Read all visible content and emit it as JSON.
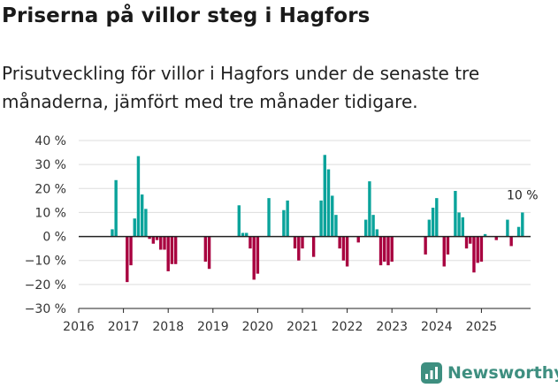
{
  "title": "Priserna på villor steg i Hagfors",
  "subtitle": "Prisutveckling för villor i Hagfors under de senaste tre månaderna, jämfört med tre månader tidigare.",
  "brand": {
    "name": "Newsworthy",
    "icon": "newsworthy-logo-icon",
    "color": "#3e8f80"
  },
  "chart_data": {
    "type": "bar",
    "ylim": [
      -30,
      40
    ],
    "yticks": [
      -30,
      -20,
      -10,
      0,
      10,
      20,
      30,
      40
    ],
    "ytick_labels": [
      "−30 %",
      "−20 %",
      "−10 %",
      "0 %",
      "10 %",
      "20 %",
      "30 %",
      "40 %"
    ],
    "xticks": [
      2016,
      2017,
      2018,
      2019,
      2020,
      2021,
      2022,
      2023,
      2024,
      2025
    ],
    "xtick_labels": [
      "2016",
      "2017",
      "2018",
      "2019",
      "2020",
      "2021",
      "2022",
      "2023",
      "2024",
      "2025"
    ],
    "xlim": [
      2016,
      2026.2
    ],
    "colors": {
      "positive": "#0aa39b",
      "negative": "#a8003f",
      "grid": "#dddddd",
      "axis": "#222222"
    },
    "annotation": {
      "text": "10 %",
      "year": 2025.917,
      "value": 10
    },
    "series": [
      {
        "name": "Prisutveckling",
        "points": [
          {
            "x": 2016.75,
            "y": 3
          },
          {
            "x": 2016.833,
            "y": 23.5
          },
          {
            "x": 2017.083,
            "y": -19
          },
          {
            "x": 2017.167,
            "y": -12
          },
          {
            "x": 2017.25,
            "y": 7.5
          },
          {
            "x": 2017.333,
            "y": 33.5
          },
          {
            "x": 2017.417,
            "y": 17.5
          },
          {
            "x": 2017.5,
            "y": 11.5
          },
          {
            "x": 2017.583,
            "y": -1
          },
          {
            "x": 2017.667,
            "y": -3
          },
          {
            "x": 2017.75,
            "y": -1.5
          },
          {
            "x": 2017.833,
            "y": -5.5
          },
          {
            "x": 2017.917,
            "y": -5.5
          },
          {
            "x": 2018.0,
            "y": -14.5
          },
          {
            "x": 2018.083,
            "y": -11.5
          },
          {
            "x": 2018.167,
            "y": -11.5
          },
          {
            "x": 2018.833,
            "y": -10.5
          },
          {
            "x": 2018.917,
            "y": -13.5
          },
          {
            "x": 2019.583,
            "y": 13
          },
          {
            "x": 2019.667,
            "y": 1.5
          },
          {
            "x": 2019.75,
            "y": 1.5
          },
          {
            "x": 2019.833,
            "y": -5
          },
          {
            "x": 2019.917,
            "y": -18
          },
          {
            "x": 2020.0,
            "y": -15.5
          },
          {
            "x": 2020.25,
            "y": 16
          },
          {
            "x": 2020.583,
            "y": 11
          },
          {
            "x": 2020.667,
            "y": 15
          },
          {
            "x": 2020.833,
            "y": -5
          },
          {
            "x": 2020.917,
            "y": -10
          },
          {
            "x": 2021.0,
            "y": -5
          },
          {
            "x": 2021.25,
            "y": -8.5
          },
          {
            "x": 2021.417,
            "y": 15
          },
          {
            "x": 2021.5,
            "y": 34
          },
          {
            "x": 2021.583,
            "y": 28
          },
          {
            "x": 2021.667,
            "y": 17
          },
          {
            "x": 2021.75,
            "y": 9
          },
          {
            "x": 2021.833,
            "y": -5
          },
          {
            "x": 2021.917,
            "y": -10
          },
          {
            "x": 2022.0,
            "y": -12.5
          },
          {
            "x": 2022.25,
            "y": -2.5
          },
          {
            "x": 2022.417,
            "y": 7
          },
          {
            "x": 2022.5,
            "y": 23
          },
          {
            "x": 2022.583,
            "y": 9
          },
          {
            "x": 2022.667,
            "y": 3
          },
          {
            "x": 2022.75,
            "y": -12
          },
          {
            "x": 2022.833,
            "y": -10.5
          },
          {
            "x": 2022.917,
            "y": -12
          },
          {
            "x": 2023.0,
            "y": -10.5
          },
          {
            "x": 2023.75,
            "y": -7.5
          },
          {
            "x": 2023.833,
            "y": 7
          },
          {
            "x": 2023.917,
            "y": 12
          },
          {
            "x": 2024.0,
            "y": 16
          },
          {
            "x": 2024.167,
            "y": -12.5
          },
          {
            "x": 2024.25,
            "y": -7.5
          },
          {
            "x": 2024.417,
            "y": 19
          },
          {
            "x": 2024.5,
            "y": 10
          },
          {
            "x": 2024.583,
            "y": 8
          },
          {
            "x": 2024.667,
            "y": -5
          },
          {
            "x": 2024.75,
            "y": -3
          },
          {
            "x": 2024.833,
            "y": -15
          },
          {
            "x": 2024.917,
            "y": -11
          },
          {
            "x": 2025.0,
            "y": -10.5
          },
          {
            "x": 2025.083,
            "y": 1
          },
          {
            "x": 2025.333,
            "y": -1.5
          },
          {
            "x": 2025.583,
            "y": 7
          },
          {
            "x": 2025.667,
            "y": -4
          },
          {
            "x": 2025.833,
            "y": 4
          },
          {
            "x": 2025.917,
            "y": 10
          }
        ]
      }
    ]
  }
}
